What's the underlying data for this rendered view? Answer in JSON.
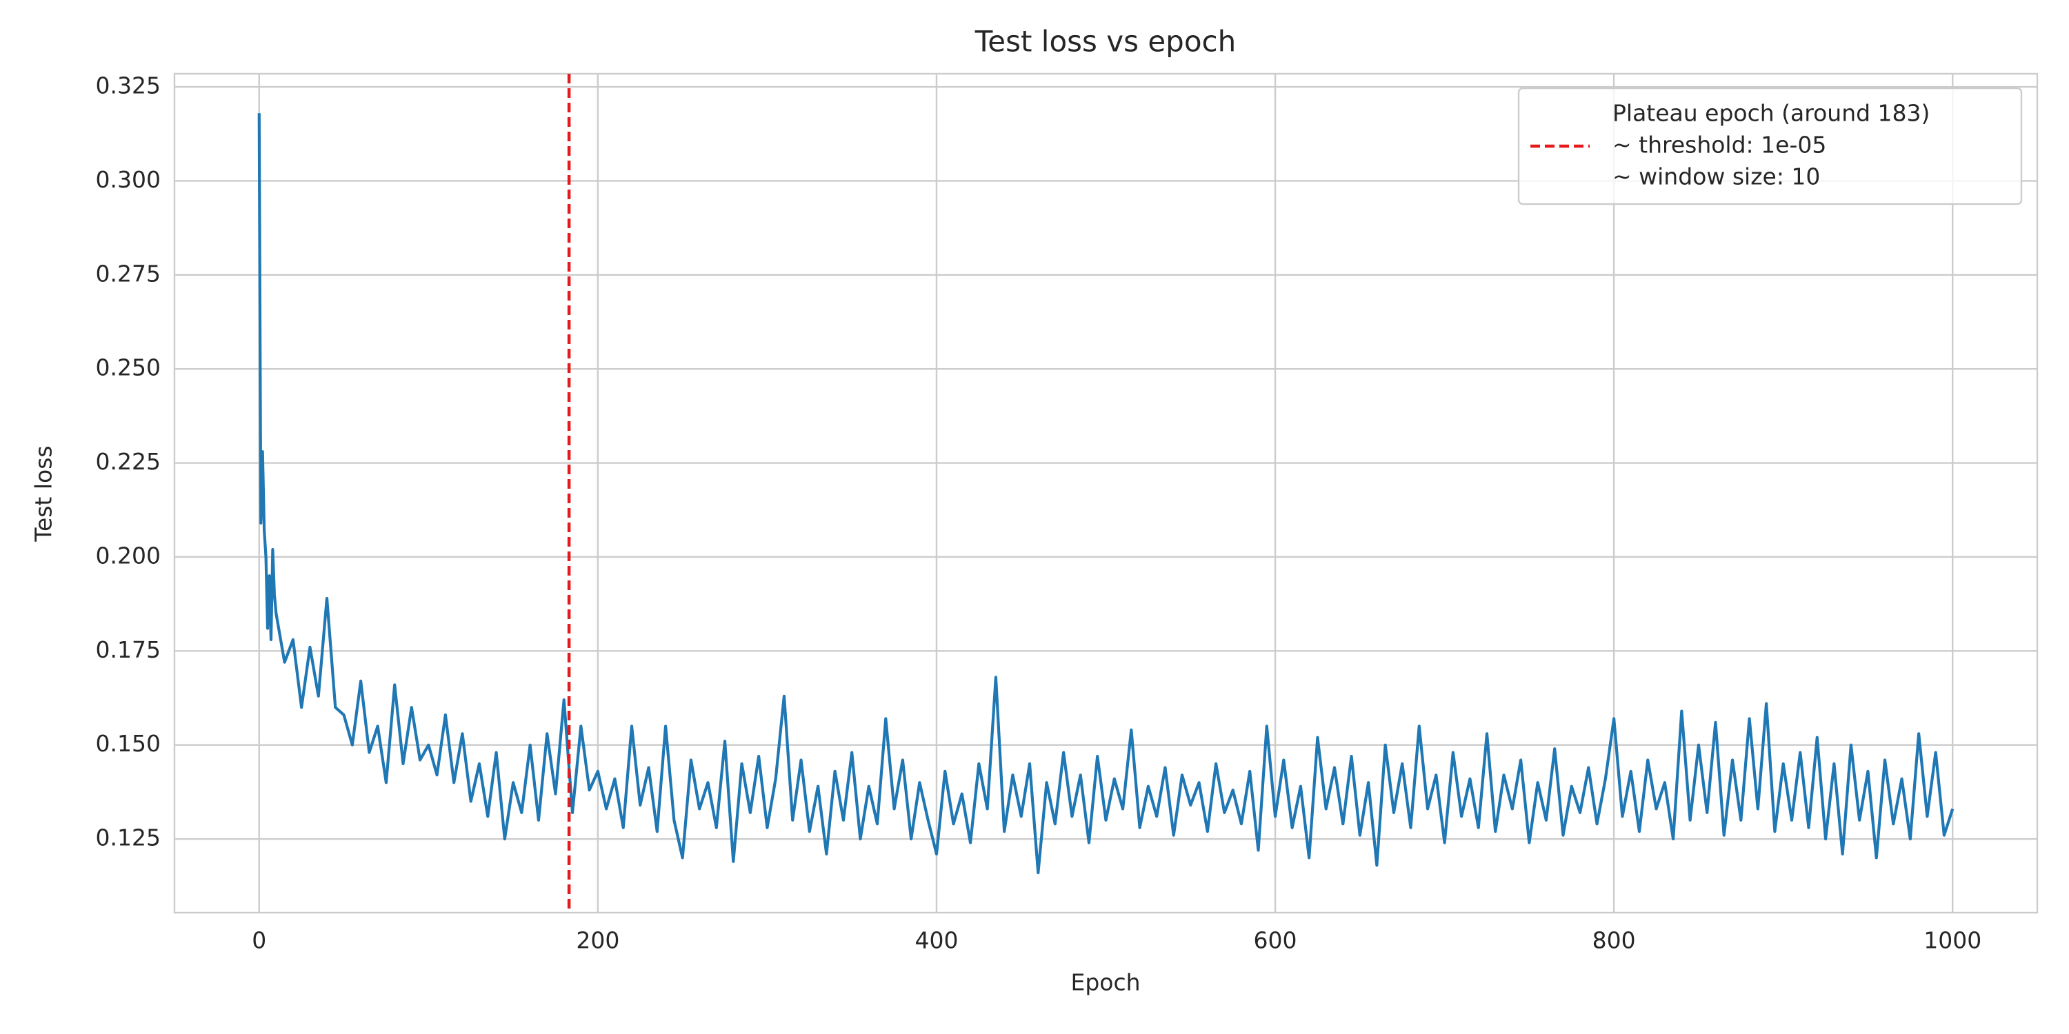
{
  "chart_data": {
    "type": "line",
    "title": "Test loss vs epoch",
    "x_label": "Epoch",
    "y_label": "Test loss",
    "xlim": [
      -50,
      1050
    ],
    "ylim": [
      0.1054,
      0.3285
    ],
    "xticks": [
      0,
      200,
      400,
      600,
      800,
      1000
    ],
    "yticks": [
      0.125,
      {
        "value": 0.15,
        "label": "0.150"
      },
      0.175,
      {
        "value": 0.2,
        "label": "0.200"
      },
      0.225,
      {
        "value": 0.25,
        "label": "0.250"
      },
      0.275,
      {
        "value": 0.3,
        "label": "0.300"
      },
      0.325
    ],
    "grid": true,
    "legend_position": "upper right",
    "vline": {
      "x": 183,
      "color": "#e41a1c",
      "label": [
        "Plateau epoch (around 183)",
        "~ threshold: 1e-05",
        "~ window size: 10"
      ]
    },
    "series": [
      {
        "color": "#1f77b4",
        "x": [
          0,
          1,
          2,
          3,
          4,
          5,
          6,
          7,
          8,
          9,
          10,
          15,
          20,
          25,
          30,
          35,
          40,
          45,
          50,
          55,
          60,
          65,
          70,
          75,
          80,
          85,
          90,
          95,
          100,
          105,
          110,
          115,
          120,
          125,
          130,
          135,
          140,
          145,
          150,
          155,
          160,
          165,
          170,
          175,
          180,
          185,
          190,
          195,
          200,
          205,
          210,
          215,
          220,
          225,
          230,
          235,
          240,
          245,
          250,
          255,
          260,
          265,
          270,
          275,
          280,
          285,
          290,
          295,
          300,
          305,
          310,
          315,
          320,
          325,
          330,
          335,
          340,
          345,
          350,
          355,
          360,
          365,
          370,
          375,
          380,
          385,
          390,
          395,
          400,
          405,
          410,
          415,
          420,
          425,
          430,
          435,
          440,
          445,
          450,
          455,
          460,
          465,
          470,
          475,
          480,
          485,
          490,
          495,
          500,
          505,
          510,
          515,
          520,
          525,
          530,
          535,
          540,
          545,
          550,
          555,
          560,
          565,
          570,
          575,
          580,
          585,
          590,
          595,
          600,
          605,
          610,
          615,
          620,
          625,
          630,
          635,
          640,
          645,
          650,
          655,
          660,
          665,
          670,
          675,
          680,
          685,
          690,
          695,
          700,
          705,
          710,
          715,
          720,
          725,
          730,
          735,
          740,
          745,
          750,
          755,
          760,
          765,
          770,
          775,
          780,
          785,
          790,
          795,
          800,
          805,
          810,
          815,
          820,
          825,
          830,
          835,
          840,
          845,
          850,
          855,
          860,
          865,
          870,
          875,
          880,
          885,
          890,
          895,
          900,
          905,
          910,
          915,
          920,
          925,
          930,
          935,
          940,
          945,
          950,
          955,
          960,
          965,
          970,
          975,
          980,
          985,
          990,
          995,
          1000
        ],
        "values": [
          0.318,
          0.209,
          0.228,
          0.207,
          0.2,
          0.181,
          0.195,
          0.178,
          0.202,
          0.19,
          0.185,
          0.172,
          0.178,
          0.16,
          0.176,
          0.163,
          0.189,
          0.16,
          0.158,
          0.15,
          0.167,
          0.148,
          0.155,
          0.14,
          0.166,
          0.145,
          0.16,
          0.146,
          0.15,
          0.142,
          0.158,
          0.14,
          0.153,
          0.135,
          0.145,
          0.131,
          0.148,
          0.125,
          0.14,
          0.132,
          0.15,
          0.13,
          0.153,
          0.137,
          0.162,
          0.132,
          0.155,
          0.138,
          0.143,
          0.133,
          0.141,
          0.128,
          0.155,
          0.134,
          0.144,
          0.127,
          0.155,
          0.13,
          0.12,
          0.146,
          0.133,
          0.14,
          0.128,
          0.151,
          0.119,
          0.145,
          0.132,
          0.147,
          0.128,
          0.141,
          0.163,
          0.13,
          0.146,
          0.127,
          0.139,
          0.121,
          0.143,
          0.13,
          0.148,
          0.125,
          0.139,
          0.129,
          0.157,
          0.133,
          0.146,
          0.125,
          0.14,
          0.13,
          0.121,
          0.143,
          0.129,
          0.137,
          0.124,
          0.145,
          0.133,
          0.168,
          0.127,
          0.142,
          0.131,
          0.145,
          0.116,
          0.14,
          0.129,
          0.148,
          0.131,
          0.142,
          0.124,
          0.147,
          0.13,
          0.141,
          0.133,
          0.154,
          0.128,
          0.139,
          0.131,
          0.144,
          0.126,
          0.142,
          0.134,
          0.14,
          0.127,
          0.145,
          0.132,
          0.138,
          0.129,
          0.143,
          0.122,
          0.155,
          0.131,
          0.146,
          0.128,
          0.139,
          0.12,
          0.152,
          0.133,
          0.144,
          0.129,
          0.147,
          0.126,
          0.14,
          0.118,
          0.15,
          0.132,
          0.145,
          0.128,
          0.155,
          0.133,
          0.142,
          0.124,
          0.148,
          0.131,
          0.141,
          0.128,
          0.153,
          0.127,
          0.142,
          0.133,
          0.146,
          0.124,
          0.14,
          0.13,
          0.149,
          0.126,
          0.139,
          0.132,
          0.144,
          0.129,
          0.141,
          0.157,
          0.131,
          0.143,
          0.127,
          0.146,
          0.133,
          0.14,
          0.125,
          0.159,
          0.13,
          0.15,
          0.132,
          0.156,
          0.126,
          0.146,
          0.13,
          0.157,
          0.133,
          0.161,
          0.127,
          0.145,
          0.13,
          0.148,
          0.128,
          0.152,
          0.125,
          0.145,
          0.121,
          0.15,
          0.13,
          0.143,
          0.12,
          0.146,
          0.129,
          0.141,
          0.125,
          0.153,
          0.131,
          0.148,
          0.126,
          0.133
        ]
      }
    ]
  }
}
